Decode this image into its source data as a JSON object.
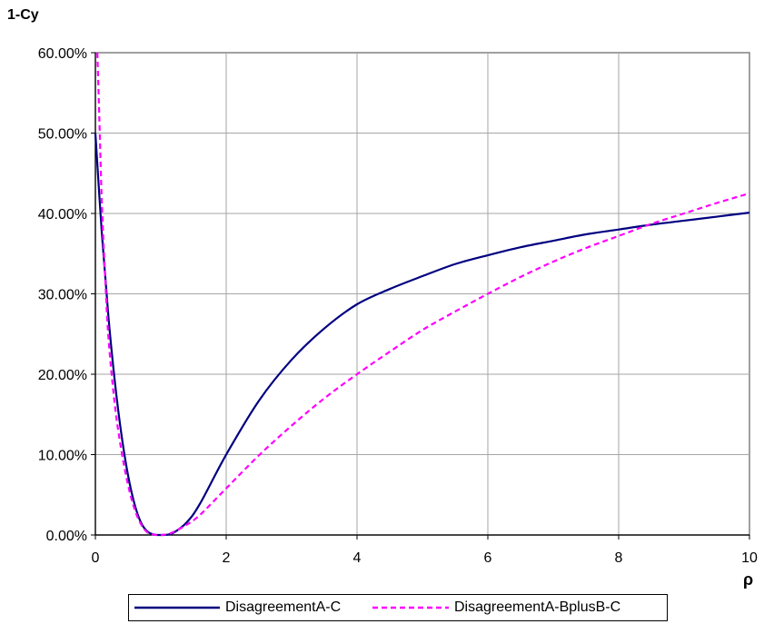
{
  "chart_data": {
    "type": "line",
    "ylabel": "1-Cy",
    "xlabel": "ρ",
    "xlim": [
      0,
      10
    ],
    "ylim": [
      0,
      0.6
    ],
    "x_ticks": [
      "0",
      "2",
      "4",
      "6",
      "8",
      "10"
    ],
    "y_ticks": [
      "0.00%",
      "10.00%",
      "20.00%",
      "30.00%",
      "40.00%",
      "50.00%",
      "60.00%"
    ],
    "grid": true,
    "legend_position": "bottom",
    "series": [
      {
        "name": "DisagreementA-C",
        "color": "#000080",
        "style": "solid",
        "x": [
          0,
          0.1,
          0.2,
          0.3,
          0.4,
          0.5,
          0.6,
          0.7,
          0.8,
          0.9,
          1.0,
          1.1,
          1.2,
          1.4,
          1.6,
          2,
          2.5,
          3,
          3.5,
          4,
          4.5,
          5,
          5.5,
          6,
          6.5,
          7,
          7.5,
          8,
          8.5,
          9,
          9.5,
          10
        ],
        "y": [
          0.5,
          0.374,
          0.271,
          0.189,
          0.124,
          0.074,
          0.038,
          0.015,
          0.004,
          0.0005,
          0.0,
          0.0004,
          0.003,
          0.016,
          0.039,
          0.1,
          0.167,
          0.218,
          0.257,
          0.287,
          0.306,
          0.322,
          0.337,
          0.348,
          0.358,
          0.366,
          0.374,
          0.38,
          0.386,
          0.391,
          0.396,
          0.401
        ]
      },
      {
        "name": "DisagreementA-BplusB-C",
        "color": "#ff00ff",
        "style": "dashed",
        "x": [
          0.03,
          0.06,
          0.1,
          0.15,
          0.2,
          0.3,
          0.4,
          0.5,
          0.6,
          0.7,
          0.8,
          0.9,
          1.0,
          1.1,
          1.2,
          1.4,
          1.6,
          2,
          2.5,
          3,
          3.5,
          4,
          4.5,
          5,
          5.5,
          6,
          6.5,
          7,
          7.5,
          8,
          8.5,
          9,
          9.5,
          10
        ],
        "y": [
          0.6,
          0.52,
          0.41,
          0.32,
          0.245,
          0.16,
          0.104,
          0.062,
          0.032,
          0.013,
          0.003,
          0.0004,
          0.0,
          0.001,
          0.004,
          0.013,
          0.025,
          0.058,
          0.099,
          0.136,
          0.17,
          0.2,
          0.228,
          0.255,
          0.278,
          0.3,
          0.321,
          0.34,
          0.357,
          0.372,
          0.387,
          0.4,
          0.413,
          0.425
        ]
      }
    ]
  }
}
